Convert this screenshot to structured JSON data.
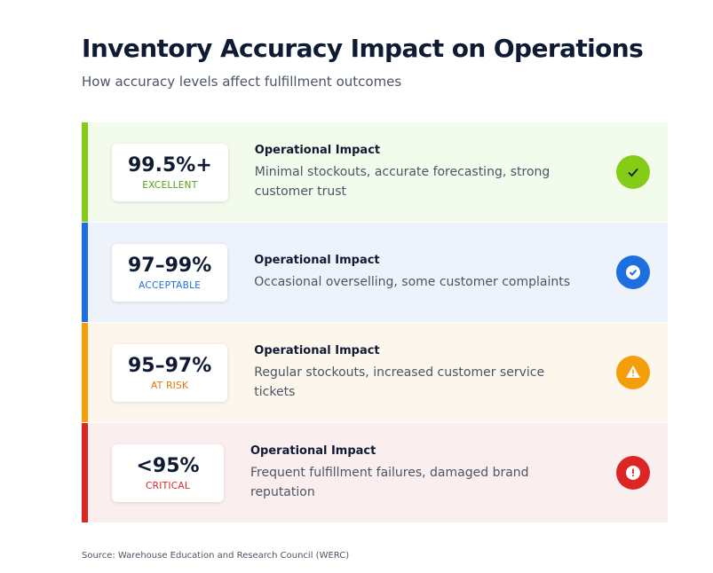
{
  "header": {
    "title": "Inventory Accuracy Impact on Operations",
    "subtitle": "How accuracy levels affect fulfillment outcomes"
  },
  "rows": [
    {
      "level": "99.5%+",
      "status": "EXCELLENT",
      "impact_title": "Operational Impact",
      "impact": "Minimal stockouts, accurate forecasting, strong customer trust"
    },
    {
      "level": "97–99%",
      "status": "ACCEPTABLE",
      "impact_title": "Operational Impact",
      "impact": "Occasional overselling, some customer complaints"
    },
    {
      "level": "95–97%",
      "status": "AT RISK",
      "impact_title": "Operational Impact",
      "impact": "Regular stockouts, increased customer service tickets"
    },
    {
      "level": "<95%",
      "status": "CRITICAL",
      "impact_title": "Operational Impact",
      "impact": "Frequent fulfillment failures, damaged brand reputation"
    }
  ],
  "source": "Source: Warehouse Education and Research Council (WERC)"
}
